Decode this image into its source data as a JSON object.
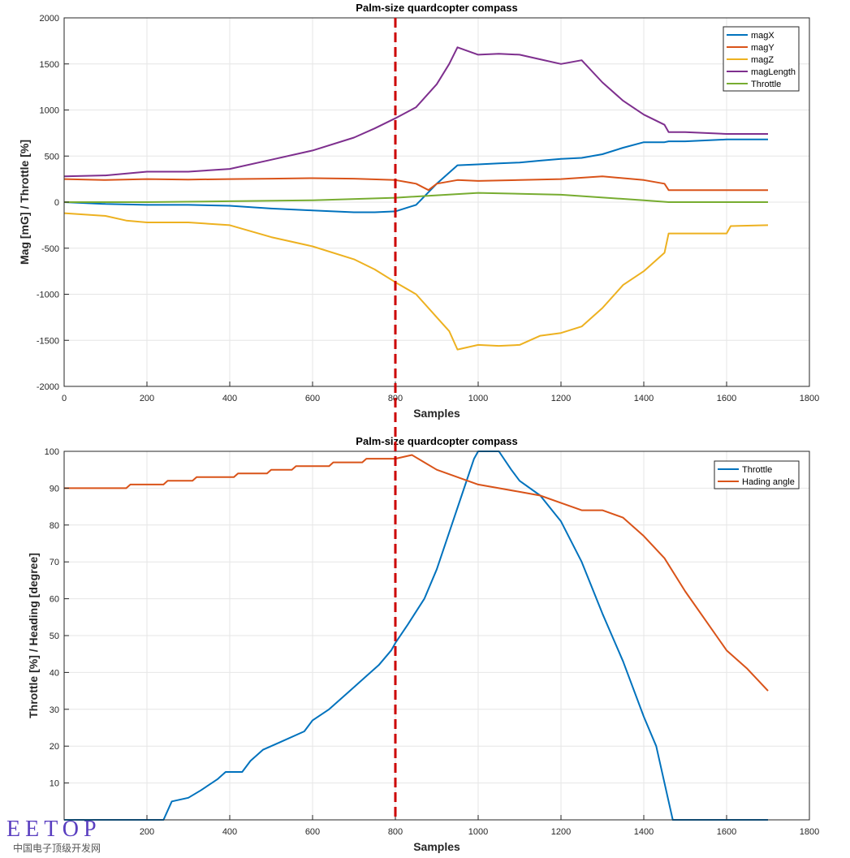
{
  "watermark": {
    "brand": "EETOP",
    "subtitle": "中国电子顶级开发网"
  },
  "colors": {
    "magX": "#0072BD",
    "magY": "#D95319",
    "magZ": "#EDB120",
    "magLength": "#7E2F8E",
    "throttle_top": "#77AC30",
    "throttle_bottom": "#0072BD",
    "heading": "#D95319",
    "marker": "#CC0000",
    "grid": "#e6e6e6"
  },
  "marker_line": {
    "x": 800,
    "style": "dashed"
  },
  "chart_data": [
    {
      "type": "line",
      "title": "Palm-size quardcopter compass",
      "xlabel": "Samples",
      "ylabel": "Mag [mG] / Throttle [%]",
      "xlim": [
        0,
        1800
      ],
      "ylim": [
        -2000,
        2000
      ],
      "xticks": [
        "0",
        "200",
        "400",
        "600",
        "800",
        "1000",
        "1200",
        "1400",
        "1600",
        "1800"
      ],
      "yticks": [
        "-2000",
        "-1500",
        "-1000",
        "-500",
        "0",
        "500",
        "1000",
        "1500",
        "2000"
      ],
      "grid": true,
      "legend_position": "top-right",
      "series": [
        {
          "name": "magX",
          "x": [
            0,
            100,
            200,
            300,
            400,
            500,
            600,
            700,
            750,
            800,
            850,
            900,
            950,
            1000,
            1050,
            1100,
            1150,
            1200,
            1250,
            1300,
            1350,
            1400,
            1450,
            1460,
            1500,
            1600,
            1700
          ],
          "y": [
            0,
            -20,
            -30,
            -30,
            -40,
            -70,
            -90,
            -110,
            -110,
            -100,
            -30,
            200,
            400,
            410,
            420,
            430,
            450,
            470,
            480,
            520,
            590,
            650,
            650,
            660,
            660,
            680,
            680
          ]
        },
        {
          "name": "magY",
          "x": [
            0,
            100,
            200,
            300,
            400,
            500,
            600,
            700,
            800,
            850,
            880,
            900,
            950,
            1000,
            1100,
            1200,
            1300,
            1350,
            1400,
            1450,
            1460,
            1500,
            1600,
            1700
          ],
          "y": [
            250,
            240,
            250,
            245,
            250,
            255,
            260,
            255,
            240,
            200,
            130,
            200,
            240,
            230,
            240,
            250,
            280,
            260,
            240,
            200,
            130,
            130,
            130,
            130
          ]
        },
        {
          "name": "magZ",
          "x": [
            0,
            100,
            150,
            200,
            300,
            400,
            500,
            600,
            700,
            750,
            800,
            850,
            900,
            930,
            950,
            1000,
            1050,
            1100,
            1150,
            1200,
            1250,
            1300,
            1350,
            1400,
            1450,
            1460,
            1500,
            1600,
            1610,
            1700
          ],
          "y": [
            -120,
            -150,
            -200,
            -220,
            -220,
            -250,
            -380,
            -480,
            -620,
            -730,
            -870,
            -1000,
            -1250,
            -1400,
            -1600,
            -1550,
            -1560,
            -1550,
            -1450,
            -1420,
            -1350,
            -1150,
            -900,
            -750,
            -550,
            -340,
            -340,
            -340,
            -260,
            -250
          ]
        },
        {
          "name": "magLength",
          "x": [
            0,
            100,
            200,
            300,
            400,
            500,
            600,
            700,
            750,
            800,
            850,
            900,
            930,
            950,
            1000,
            1050,
            1100,
            1150,
            1200,
            1250,
            1300,
            1350,
            1400,
            1450,
            1460,
            1500,
            1600,
            1700
          ],
          "y": [
            280,
            290,
            330,
            330,
            360,
            460,
            560,
            700,
            800,
            910,
            1030,
            1280,
            1500,
            1680,
            1600,
            1610,
            1600,
            1550,
            1500,
            1540,
            1300,
            1100,
            950,
            840,
            760,
            760,
            740,
            740
          ]
        },
        {
          "name": "Throttle",
          "x": [
            0,
            200,
            400,
            600,
            800,
            1000,
            1200,
            1400,
            1460,
            1700
          ],
          "y": [
            0,
            0,
            10,
            20,
            48,
            100,
            80,
            20,
            0,
            0
          ]
        }
      ]
    },
    {
      "type": "line",
      "title": "Palm-size quardcopter compass",
      "xlabel": "Samples",
      "ylabel": "Throttle [%] / Heading [degree]",
      "xlim": [
        0,
        1800
      ],
      "ylim": [
        0,
        100
      ],
      "xticks": [
        "200",
        "400",
        "600",
        "800",
        "1000",
        "1200",
        "1400",
        "1600",
        "1800"
      ],
      "yticks": [
        "10",
        "20",
        "30",
        "40",
        "50",
        "60",
        "70",
        "80",
        "90",
        "100"
      ],
      "grid": true,
      "legend_position": "top-right",
      "series": [
        {
          "name": "Throttle",
          "x": [
            0,
            240,
            260,
            300,
            330,
            370,
            390,
            430,
            450,
            480,
            520,
            580,
            600,
            640,
            690,
            730,
            760,
            790,
            800,
            830,
            870,
            900,
            930,
            960,
            990,
            1000,
            1050,
            1080,
            1100,
            1150,
            1200,
            1250,
            1300,
            1350,
            1400,
            1430,
            1460,
            1470,
            1700
          ],
          "y": [
            0,
            0,
            5,
            6,
            8,
            11,
            13,
            13,
            16,
            19,
            21,
            24,
            27,
            30,
            35,
            39,
            42,
            46,
            48,
            53,
            60,
            68,
            78,
            88,
            98,
            100,
            100,
            95,
            92,
            88,
            81,
            70,
            56,
            43,
            28,
            20,
            5,
            0,
            0
          ]
        },
        {
          "name": "Hading angle",
          "x": [
            0,
            150,
            160,
            240,
            250,
            310,
            320,
            410,
            420,
            490,
            500,
            550,
            560,
            640,
            650,
            720,
            730,
            790,
            800,
            840,
            870,
            900,
            950,
            1000,
            1050,
            1100,
            1150,
            1200,
            1250,
            1300,
            1350,
            1400,
            1450,
            1500,
            1550,
            1600,
            1650,
            1700
          ],
          "y": [
            90,
            90,
            91,
            91,
            92,
            92,
            93,
            93,
            94,
            94,
            95,
            95,
            96,
            96,
            97,
            97,
            98,
            98,
            98,
            99,
            97,
            95,
            93,
            91,
            90,
            89,
            88,
            86,
            84,
            84,
            82,
            77,
            71,
            62,
            54,
            46,
            41,
            35
          ]
        }
      ]
    }
  ]
}
